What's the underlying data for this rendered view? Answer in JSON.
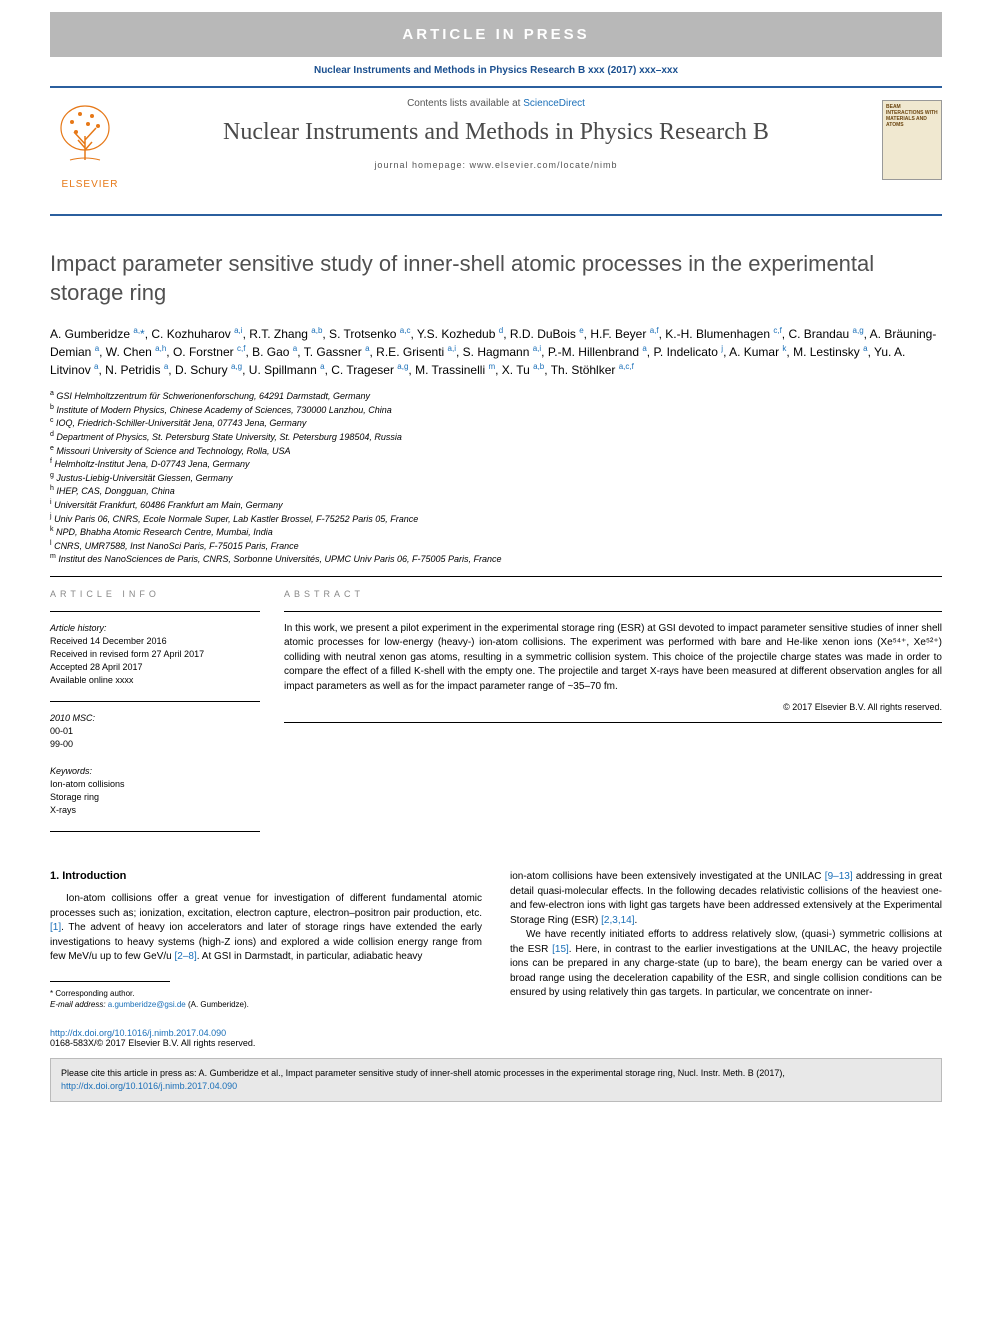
{
  "banner": {
    "text": "ARTICLE IN PRESS"
  },
  "citation_header": "Nuclear Instruments and Methods in Physics Research B xxx (2017) xxx–xxx",
  "header": {
    "contents_prefix": "Contents lists available at ",
    "contents_link": "ScienceDirect",
    "journal_title": "Nuclear Instruments and Methods in Physics Research B",
    "homepage_prefix": "journal homepage: ",
    "homepage_url": "www.elsevier.com/locate/nimb",
    "publisher_name": "ELSEVIER",
    "cover_text": "BEAM INTERACTIONS WITH MATERIALS AND ATOMS"
  },
  "title": "Impact parameter sensitive study of inner-shell atomic processes in the experimental storage ring",
  "authors_html": "A. Gumberidze <sup>a,</sup><span class='corr-star'>*</span>, C. Kozhuharov <sup>a,i</sup>, R.T. Zhang <sup>a,b</sup>, S. Trotsenko <sup>a,c</sup>, Y.S. Kozhedub <sup>d</sup>, R.D. DuBois <sup>e</sup>, H.F. Beyer <sup>a,f</sup>, K.-H. Blumenhagen <sup>c,f</sup>, C. Brandau <sup>a,g</sup>, A. Bräuning-Demian <sup>a</sup>, W. Chen <sup>a,h</sup>, O. Forstner <sup>c,f</sup>, B. Gao <sup>a</sup>, T. Gassner <sup>a</sup>, R.E. Grisenti <sup>a,i</sup>, S. Hagmann <sup>a,i</sup>, P.-M. Hillenbrand <sup>a</sup>, P. Indelicato <sup>j</sup>, A. Kumar <sup>k</sup>, M. Lestinsky <sup>a</sup>, Yu. A. Litvinov <sup>a</sup>, N. Petridis <sup>a</sup>, D. Schury <sup>a,g</sup>, U. Spillmann <sup>a</sup>, C. Trageser <sup>a,g</sup>, M. Trassinelli <sup>m</sup>, X. Tu <sup>a,b</sup>, Th. Stöhlker <sup>a,c,f</sup>",
  "affiliations": [
    {
      "key": "a",
      "text": "GSI Helmholtzzentrum für Schwerionenforschung, 64291 Darmstadt, Germany"
    },
    {
      "key": "b",
      "text": "Institute of Modern Physics, Chinese Academy of Sciences, 730000 Lanzhou, China"
    },
    {
      "key": "c",
      "text": "IOQ, Friedrich-Schiller-Universität Jena, 07743 Jena, Germany"
    },
    {
      "key": "d",
      "text": "Department of Physics, St. Petersburg State University, St. Petersburg 198504, Russia"
    },
    {
      "key": "e",
      "text": "Missouri University of Science and Technology, Rolla, USA"
    },
    {
      "key": "f",
      "text": "Helmholtz-Institut Jena, D-07743 Jena, Germany"
    },
    {
      "key": "g",
      "text": "Justus-Liebig-Universität Giessen, Germany"
    },
    {
      "key": "h",
      "text": "IHEP, CAS, Dongguan, China"
    },
    {
      "key": "i",
      "text": "Universität Frankfurt, 60486 Frankfurt am Main, Germany"
    },
    {
      "key": "j",
      "text": "Univ Paris 06, CNRS, Ecole Normale Super, Lab Kastler Brossel, F-75252 Paris 05, France"
    },
    {
      "key": "k",
      "text": "NPD, Bhabha Atomic Research Centre, Mumbai, India"
    },
    {
      "key": "l",
      "text": "CNRS, UMR7588, Inst NanoSci Paris, F-75015 Paris, France"
    },
    {
      "key": "m",
      "text": "Institut des NanoSciences de Paris, CNRS, Sorbonne Universités, UPMC Univ Paris 06, F-75005 Paris, France"
    }
  ],
  "info": {
    "label": "ARTICLE INFO",
    "history_heading": "Article history:",
    "history": [
      "Received 14 December 2016",
      "Received in revised form 27 April 2017",
      "Accepted 28 April 2017",
      "Available online xxxx"
    ],
    "msc_heading": "2010 MSC:",
    "msc": [
      "00-01",
      "99-00"
    ],
    "keywords_heading": "Keywords:",
    "keywords": [
      "Ion-atom collisions",
      "Storage ring",
      "X-rays"
    ]
  },
  "abstract": {
    "label": "ABSTRACT",
    "text": "In this work, we present a pilot experiment in the experimental storage ring (ESR) at GSI devoted to impact parameter sensitive studies of inner shell atomic processes for low-energy (heavy-) ion-atom collisions. The experiment was performed with bare and He-like xenon ions (Xe⁵⁴⁺, Xe⁵²⁺) colliding with neutral xenon gas atoms, resulting in a symmetric collision system. This choice of the projectile charge states was made in order to compare the effect of a filled K-shell with the empty one. The projectile and target X-rays have been measured at different observation angles for all impact parameters as well as for the impact parameter range of ~35–70 fm.",
    "copyright": "© 2017 Elsevier B.V. All rights reserved."
  },
  "body": {
    "section_heading": "1. Introduction",
    "col1_p1_pre": "Ion-atom collisions offer a great venue for investigation of different fundamental atomic processes such as; ionization, excitation, electron capture, electron–positron pair production, etc. ",
    "col1_ref1": "[1]",
    "col1_p1_mid": ". The advent of heavy ion accelerators and later of storage rings have extended the early investigations to heavy systems (high-Z ions) and explored a wide collision energy range from few MeV/u up to few GeV/u ",
    "col1_ref2": "[2–8]",
    "col1_p1_post": ". At GSI in Darmstadt, in particular, adiabatic heavy",
    "col2_p1_pre": "ion-atom collisions have been extensively investigated at the UNILAC ",
    "col2_ref1": "[9–13]",
    "col2_p1_mid": " addressing in great detail quasi-molecular effects. In the following decades relativistic collisions of the heaviest one- and few-electron ions with light gas targets have been addressed extensively at the Experimental Storage Ring (ESR) ",
    "col2_ref2": "[2,3,14]",
    "col2_p1_post": ".",
    "col2_p2_pre": "We have recently initiated efforts to address relatively slow, (quasi-) symmetric collisions at the ESR ",
    "col2_ref3": "[15]",
    "col2_p2_post": ". Here, in contrast to the earlier investigations at the UNILAC, the heavy projectile ions can be prepared in any charge-state (up to bare), the beam energy can be varied over a broad range using the deceleration capability of the ESR, and single collision conditions can be ensured by using relatively thin gas targets. In particular, we concentrate on inner-"
  },
  "footnote": {
    "corr_label": "* Corresponding author.",
    "email_label": "E-mail address: ",
    "email": "a.gumberidze@gsi.de",
    "email_name": " (A. Gumberidze)."
  },
  "doi": {
    "url": "http://dx.doi.org/10.1016/j.nimb.2017.04.090",
    "issn_line": "0168-583X/© 2017 Elsevier B.V. All rights reserved."
  },
  "cite_box": {
    "prefix": "Please cite this article in press as: A. Gumberidze et al., Impact parameter sensitive study of inner-shell atomic processes in the experimental storage ring, Nucl. Instr. Meth. B (2017), ",
    "link": "http://dx.doi.org/10.1016/j.nimb.2017.04.090"
  },
  "colors": {
    "banner_bg": "#b8b8b8",
    "link": "#1a6fb8",
    "header_border": "#2b5f9e",
    "publisher_orange": "#e67817",
    "citebox_bg": "#e8e8e8"
  }
}
